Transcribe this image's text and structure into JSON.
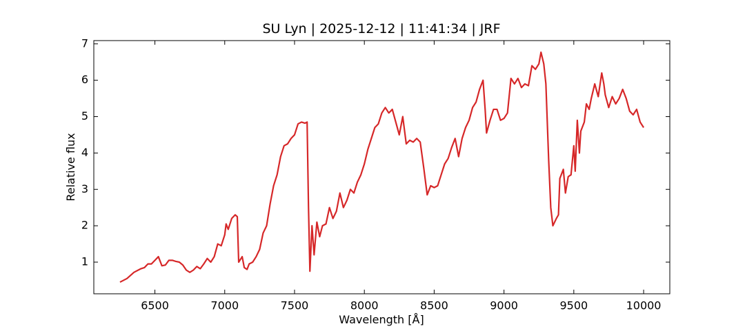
{
  "chart_data": {
    "type": "line",
    "title": "SU Lyn | 2025-12-12 | 11:41:34 | JRF",
    "xlabel": "Wavelength [Å]",
    "ylabel": "Relative flux",
    "color": "#d62728",
    "x": [
      6250,
      6300,
      6350,
      6400,
      6425,
      6450,
      6475,
      6500,
      6525,
      6550,
      6575,
      6600,
      6625,
      6650,
      6675,
      6700,
      6725,
      6750,
      6775,
      6800,
      6825,
      6850,
      6875,
      6900,
      6925,
      6950,
      6975,
      7000,
      7010,
      7025,
      7050,
      7075,
      7090,
      7100,
      7125,
      7140,
      7160,
      7175,
      7200,
      7225,
      7250,
      7275,
      7300,
      7325,
      7350,
      7375,
      7400,
      7425,
      7450,
      7475,
      7500,
      7525,
      7550,
      7575,
      7590,
      7600,
      7610,
      7625,
      7640,
      7660,
      7680,
      7700,
      7725,
      7750,
      7775,
      7800,
      7825,
      7850,
      7875,
      7900,
      7925,
      7950,
      7975,
      8000,
      8025,
      8050,
      8075,
      8100,
      8125,
      8150,
      8175,
      8200,
      8225,
      8250,
      8275,
      8300,
      8325,
      8350,
      8375,
      8400,
      8425,
      8450,
      8475,
      8500,
      8525,
      8550,
      8575,
      8600,
      8625,
      8650,
      8675,
      8700,
      8725,
      8750,
      8775,
      8800,
      8825,
      8850,
      8865,
      8875,
      8900,
      8925,
      8950,
      8975,
      9000,
      9025,
      9050,
      9075,
      9100,
      9125,
      9150,
      9175,
      9200,
      9225,
      9250,
      9265,
      9285,
      9300,
      9320,
      9335,
      9350,
      9375,
      9390,
      9400,
      9425,
      9440,
      9460,
      9480,
      9500,
      9510,
      9525,
      9540,
      9550,
      9575,
      9590,
      9610,
      9625,
      9650,
      9675,
      9700,
      9715,
      9725,
      9750,
      9775,
      9800,
      9825,
      9850,
      9875,
      9900,
      9925,
      9950,
      9975,
      10000
    ],
    "values": [
      0.45,
      0.55,
      0.72,
      0.82,
      0.85,
      0.95,
      0.95,
      1.05,
      1.15,
      0.9,
      0.92,
      1.05,
      1.05,
      1.02,
      1.0,
      0.92,
      0.78,
      0.72,
      0.78,
      0.88,
      0.82,
      0.95,
      1.1,
      1.0,
      1.15,
      1.5,
      1.45,
      1.75,
      2.05,
      1.9,
      2.2,
      2.3,
      2.25,
      1.0,
      1.15,
      0.85,
      0.8,
      0.95,
      1.0,
      1.15,
      1.35,
      1.8,
      2.0,
      2.6,
      3.1,
      3.4,
      3.9,
      4.2,
      4.25,
      4.4,
      4.5,
      4.8,
      4.85,
      4.82,
      4.85,
      2.5,
      0.75,
      2.0,
      1.2,
      2.1,
      1.7,
      2.0,
      2.05,
      2.5,
      2.2,
      2.4,
      2.9,
      2.5,
      2.7,
      3.0,
      2.9,
      3.2,
      3.4,
      3.7,
      4.1,
      4.4,
      4.7,
      4.8,
      5.1,
      5.25,
      5.1,
      5.2,
      4.85,
      4.5,
      5.0,
      4.25,
      4.35,
      4.3,
      4.4,
      4.3,
      3.6,
      2.85,
      3.1,
      3.05,
      3.1,
      3.4,
      3.7,
      3.85,
      4.15,
      4.4,
      3.9,
      4.4,
      4.7,
      4.9,
      5.25,
      5.4,
      5.75,
      6.0,
      5.2,
      4.55,
      4.9,
      5.2,
      5.2,
      4.9,
      4.95,
      5.1,
      6.05,
      5.9,
      6.05,
      5.8,
      5.9,
      5.85,
      6.4,
      6.3,
      6.45,
      6.77,
      6.45,
      5.9,
      3.8,
      2.5,
      2.0,
      2.2,
      2.3,
      3.3,
      3.55,
      2.9,
      3.35,
      3.4,
      4.2,
      3.5,
      4.9,
      4.0,
      4.6,
      4.85,
      5.35,
      5.2,
      5.5,
      5.9,
      5.55,
      6.2,
      5.9,
      5.6,
      5.25,
      5.55,
      5.35,
      5.5,
      5.75,
      5.5,
      5.15,
      5.05,
      5.2,
      4.85,
      4.7
    ],
    "xlim": [
      6062.5,
      10187.5
    ],
    "ylim": [
      0.13,
      7.09
    ],
    "xticks": [
      6500,
      7000,
      7500,
      8000,
      8500,
      9000,
      9500,
      10000
    ],
    "yticks": [
      1,
      2,
      3,
      4,
      5,
      6,
      7
    ]
  }
}
